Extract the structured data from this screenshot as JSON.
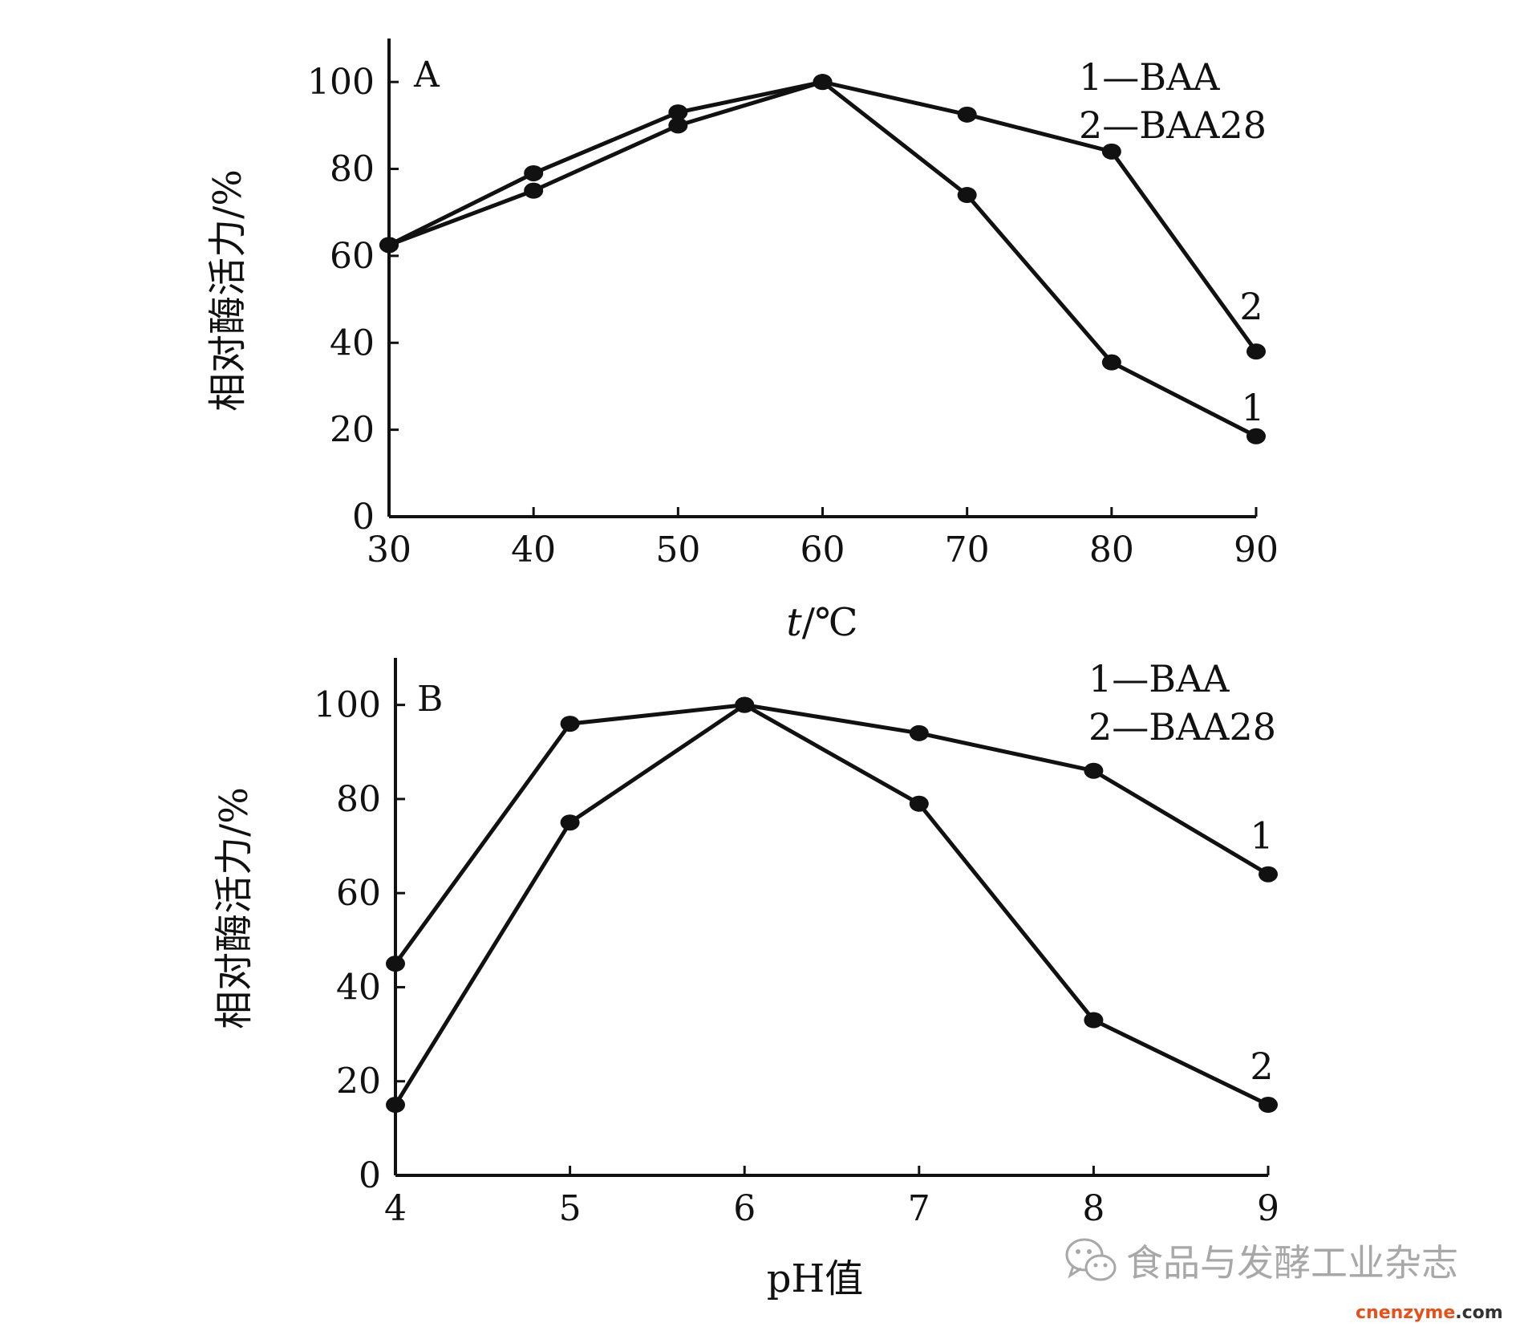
{
  "chart_data": [
    {
      "type": "line",
      "panel": "A",
      "xlabel_italic": "t",
      "xlabel_rest": "/℃",
      "ylabel": "相对酶活力/%",
      "xlim": [
        30,
        90
      ],
      "ylim": [
        0,
        110
      ],
      "xticks": [
        30,
        40,
        50,
        60,
        70,
        80,
        90
      ],
      "yticks": [
        0,
        20,
        40,
        60,
        80,
        100
      ],
      "legend": [
        "1—BAA",
        "2—BAA28"
      ],
      "legend_position": "top-right",
      "grid": false,
      "x": [
        30,
        40,
        50,
        60,
        70,
        80,
        90
      ],
      "series": [
        {
          "label": "1",
          "values": [
            62.5,
            75,
            90,
            100,
            74,
            35.5,
            18.5
          ]
        },
        {
          "label": "2",
          "values": [
            62.5,
            79,
            93,
            100,
            92.5,
            84,
            38
          ]
        }
      ]
    },
    {
      "type": "line",
      "panel": "B",
      "xlabel": "pH值",
      "ylabel": "相对酶活力/%",
      "xlim": [
        4,
        9
      ],
      "ylim": [
        0,
        110
      ],
      "xticks": [
        4,
        5,
        6,
        7,
        8,
        9
      ],
      "yticks": [
        0,
        20,
        40,
        60,
        80,
        100
      ],
      "legend": [
        "1—BAA",
        "2—BAA28"
      ],
      "legend_position": "top-right",
      "grid": false,
      "x": [
        4,
        5,
        6,
        7,
        8,
        9
      ],
      "series": [
        {
          "label": "1",
          "values": [
            45,
            96,
            100,
            94,
            86,
            64
          ]
        },
        {
          "label": "2",
          "values": [
            15,
            75,
            100,
            79,
            33,
            15
          ]
        }
      ]
    }
  ],
  "watermark": {
    "text": "食品与发酵工业杂志",
    "icon": "wechat-icon",
    "color": "#a8a8a8"
  },
  "logo": {
    "main": "cnenzyme",
    "suffix": ".com",
    "main_color": "#e8501a",
    "suffix_color": "#333333"
  },
  "colors": {
    "line": "#111111",
    "marker": "#111111"
  }
}
